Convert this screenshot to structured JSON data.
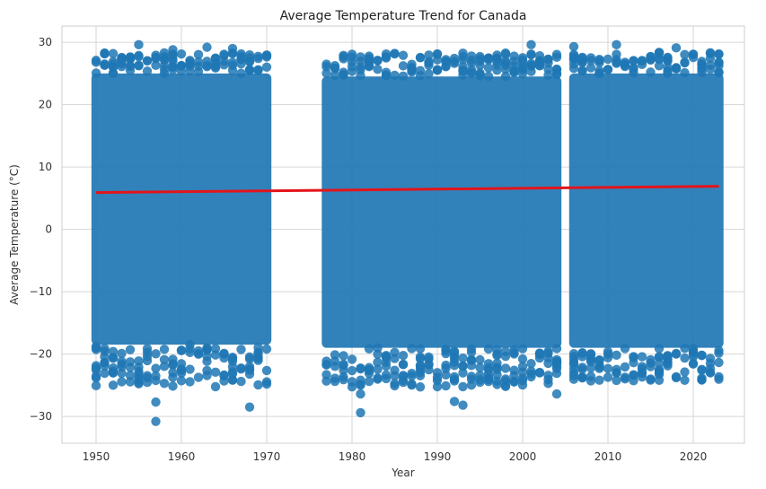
{
  "chart_data": {
    "type": "scatter",
    "title": "Average Temperature Trend for Canada",
    "xlabel": "Year",
    "ylabel": "Average Temperature (°C)",
    "xlim": [
      1946,
      2026
    ],
    "ylim": [
      -34.3,
      32.6
    ],
    "xticks": [
      1950,
      1960,
      1970,
      1980,
      1990,
      2000,
      2010,
      2020
    ],
    "yticks": [
      -30,
      -20,
      -10,
      0,
      10,
      20,
      30
    ],
    "grid": true,
    "colors": {
      "points": "#1f77b4",
      "trend": "#e4141b",
      "background": "#ffffff"
    },
    "scatter_bands": [
      {
        "x": [
          1950,
          1970
        ],
        "y_dense": [
          -18.5,
          25
        ],
        "y_sparse": [
          -26.5,
          29.5
        ]
      },
      {
        "x": [
          1977,
          2004
        ],
        "y_dense": [
          -19,
          24.5
        ],
        "y_sparse": [
          -26.5,
          29.5
        ]
      },
      {
        "x": [
          2006,
          2023
        ],
        "y_dense": [
          -19,
          25
        ],
        "y_sparse": [
          -25.5,
          29.6
        ]
      }
    ],
    "outliers": [
      {
        "x": 1957,
        "y": -30.8
      },
      {
        "x": 1957,
        "y": -27.7
      },
      {
        "x": 1968,
        "y": -28.5
      },
      {
        "x": 1981,
        "y": -29.4
      },
      {
        "x": 1981,
        "y": -26.4
      },
      {
        "x": 1993,
        "y": -28.2
      },
      {
        "x": 1992,
        "y": -27.6
      },
      {
        "x": 2004,
        "y": -26.4
      },
      {
        "x": 1955,
        "y": 29.6
      },
      {
        "x": 1959,
        "y": 28.8
      },
      {
        "x": 1963,
        "y": 29.2
      },
      {
        "x": 1966,
        "y": 29.0
      },
      {
        "x": 2001,
        "y": 29.6
      },
      {
        "x": 2011,
        "y": 29.6
      },
      {
        "x": 2006,
        "y": 29.3
      },
      {
        "x": 2018,
        "y": 29.1
      }
    ],
    "trend_line": {
      "x": [
        1950,
        2023
      ],
      "y": [
        5.9,
        6.9
      ]
    }
  }
}
